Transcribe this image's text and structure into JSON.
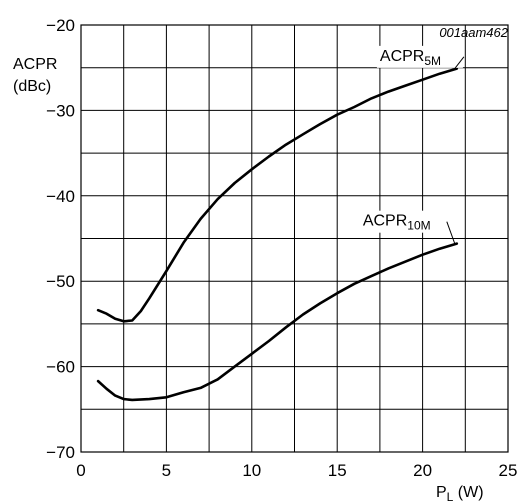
{
  "figure_ref": "001aam462",
  "chart_data": {
    "type": "line",
    "ylabel_line1": "ACPR",
    "ylabel_line2": "(dBc)",
    "xlabel_main": "P",
    "xlabel_sub": "L",
    "xlabel_unit": " (W)",
    "xlim": [
      0,
      25
    ],
    "ylim": [
      -70,
      -20
    ],
    "x_ticks": [
      0,
      5,
      10,
      15,
      20,
      25
    ],
    "x_tick_labels": [
      "0",
      "5",
      "10",
      "15",
      "20",
      "25"
    ],
    "y_ticks": [
      -70,
      -60,
      -50,
      -40,
      -30,
      -20
    ],
    "y_tick_labels": [
      "−70",
      "−60",
      "−50",
      "−40",
      "−30",
      "−20"
    ],
    "grid": true,
    "grid_x_step": 2.5,
    "grid_y_step": 5,
    "series": [
      {
        "name": "ACPR5M",
        "label_main": "ACPR",
        "label_sub": "5M",
        "points": [
          [
            1,
            -53.4
          ],
          [
            1.5,
            -53.8
          ],
          [
            2,
            -54.4
          ],
          [
            2.5,
            -54.7
          ],
          [
            3,
            -54.6
          ],
          [
            3.5,
            -53.5
          ],
          [
            4,
            -52.0
          ],
          [
            5,
            -48.8
          ],
          [
            6,
            -45.5
          ],
          [
            7,
            -42.7
          ],
          [
            8,
            -40.4
          ],
          [
            9,
            -38.5
          ],
          [
            10,
            -36.9
          ],
          [
            11,
            -35.4
          ],
          [
            12,
            -34.0
          ],
          [
            13,
            -32.8
          ],
          [
            14,
            -31.6
          ],
          [
            15,
            -30.5
          ],
          [
            16,
            -29.6
          ],
          [
            17,
            -28.6
          ],
          [
            18,
            -27.8
          ],
          [
            19,
            -27.1
          ],
          [
            20,
            -26.4
          ],
          [
            21,
            -25.7
          ],
          [
            22,
            -25.1
          ]
        ]
      },
      {
        "name": "ACPR10M",
        "label_main": "ACPR",
        "label_sub": "10M",
        "points": [
          [
            1,
            -61.7
          ],
          [
            1.5,
            -62.6
          ],
          [
            2,
            -63.4
          ],
          [
            2.5,
            -63.8
          ],
          [
            3,
            -63.9
          ],
          [
            4,
            -63.8
          ],
          [
            5,
            -63.6
          ],
          [
            6,
            -63.0
          ],
          [
            7,
            -62.5
          ],
          [
            8,
            -61.5
          ],
          [
            9,
            -60.0
          ],
          [
            10,
            -58.5
          ],
          [
            11,
            -57.0
          ],
          [
            12,
            -55.4
          ],
          [
            13,
            -53.9
          ],
          [
            14,
            -52.6
          ],
          [
            15,
            -51.4
          ],
          [
            16,
            -50.3
          ],
          [
            17,
            -49.4
          ],
          [
            18,
            -48.5
          ],
          [
            19,
            -47.7
          ],
          [
            20,
            -46.9
          ],
          [
            21,
            -46.2
          ],
          [
            22,
            -45.6
          ]
        ]
      }
    ]
  }
}
